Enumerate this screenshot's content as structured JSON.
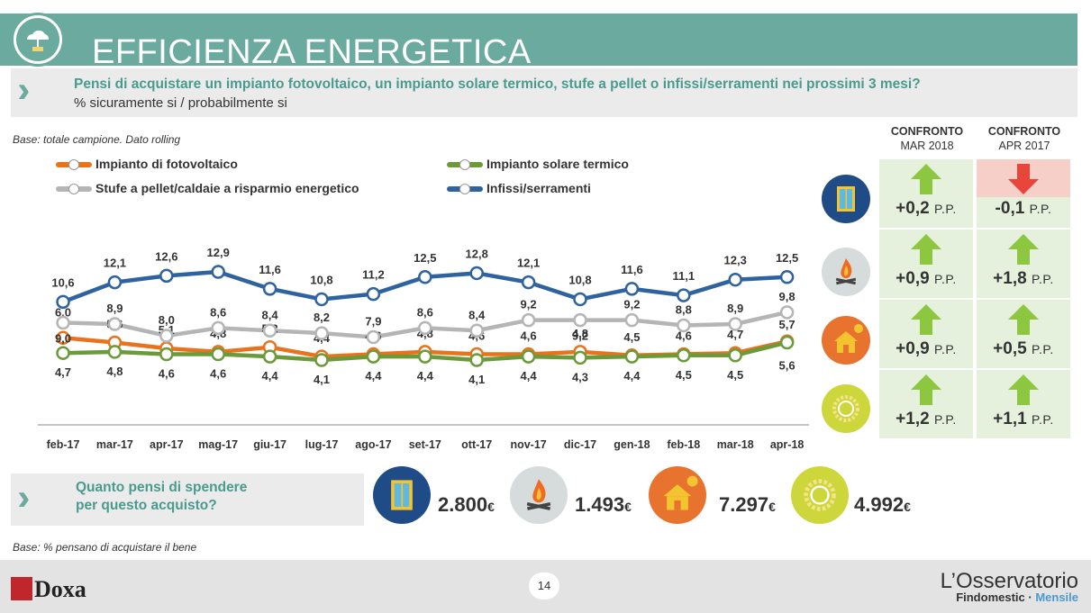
{
  "header": {
    "title": "EFFICIENZA ENERGETICA"
  },
  "question": {
    "text": "Pensi di acquistare un impianto fotovoltaico, un impianto solare termico, stufe a pellet o infissi/serramenti nei prossimi 3 mesi?",
    "subtitle": "% sicuramente si / probabilmente si"
  },
  "base_note": "Base: totale campione. Dato rolling",
  "chart_data": {
    "type": "line",
    "categories": [
      "feb-17",
      "mar-17",
      "apr-17",
      "mag-17",
      "giu-17",
      "lug-17",
      "ago-17",
      "set-17",
      "ott-17",
      "nov-17",
      "dic-17",
      "gen-18",
      "feb-18",
      "mar-18",
      "apr-18"
    ],
    "series": [
      {
        "name": "Impianto di fotovoltaico",
        "color": "#e8731f",
        "values": [
          6.0,
          5.6,
          5.1,
          4.8,
          5.2,
          4.4,
          4.6,
          4.8,
          4.6,
          4.6,
          4.8,
          4.5,
          4.6,
          4.7,
          5.7
        ]
      },
      {
        "name": "Impianto solare termico",
        "color": "#6b9a3a",
        "values": [
          4.7,
          4.8,
          4.6,
          4.6,
          4.4,
          4.1,
          4.4,
          4.4,
          4.1,
          4.4,
          4.3,
          4.4,
          4.5,
          4.5,
          5.6
        ]
      },
      {
        "name": "Stufe a pellet/caldaie a risparmio energetico",
        "color": "#b5b5b5",
        "values": [
          9.0,
          8.9,
          8.0,
          8.6,
          8.4,
          8.2,
          7.9,
          8.6,
          8.4,
          9.2,
          9.2,
          9.2,
          8.8,
          8.9,
          9.8
        ]
      },
      {
        "name": "Infissi/serramenti",
        "color": "#2f63a0",
        "values": [
          10.6,
          12.1,
          12.6,
          12.9,
          11.6,
          10.8,
          11.2,
          12.5,
          12.8,
          12.1,
          10.8,
          11.6,
          11.1,
          12.3,
          12.5
        ]
      }
    ]
  },
  "comparison": {
    "headers": [
      {
        "title": "CONFRONTO",
        "sub": "MAR 2018"
      },
      {
        "title": "CONFRONTO",
        "sub": "APR 2017"
      }
    ],
    "unit": "P.P.",
    "rows": [
      {
        "icon": "window-icon",
        "mar": "+0,2",
        "mar_dir": "up",
        "apr": "-0,1",
        "apr_dir": "down"
      },
      {
        "icon": "fire-icon",
        "mar": "+0,9",
        "mar_dir": "up",
        "apr": "+1,8",
        "apr_dir": "up"
      },
      {
        "icon": "house-sun-icon",
        "mar": "+0,9",
        "mar_dir": "up",
        "apr": "+0,5",
        "apr_dir": "up"
      },
      {
        "icon": "sun-icon",
        "mar": "+1,2",
        "mar_dir": "up",
        "apr": "+1,1",
        "apr_dir": "up"
      }
    ],
    "colors": {
      "up": "#8dc63f",
      "down": "#e8463c",
      "down_bg": "#f6cfc8",
      "cell_bg": "#e6f1dd"
    }
  },
  "spend": {
    "question": "Quanto pensi di spendere per questo acquisto?",
    "line1": "Quanto pensi di spendere",
    "line2": "per questo acquisto?",
    "currency": "€",
    "items": [
      {
        "icon": "window-icon",
        "value": "2.800"
      },
      {
        "icon": "fire-icon",
        "value": "1.493"
      },
      {
        "icon": "house-sun-icon",
        "value": "7.297"
      },
      {
        "icon": "sun-icon",
        "value": "4.992"
      }
    ]
  },
  "base_note2": "Base: % pensano di acquistare il bene",
  "footer": {
    "brand": "Doxa",
    "page": "14",
    "oss_title": "L’Osservatorio",
    "oss_sub1": "Findomestic · ",
    "oss_sub2": "Mensile"
  }
}
